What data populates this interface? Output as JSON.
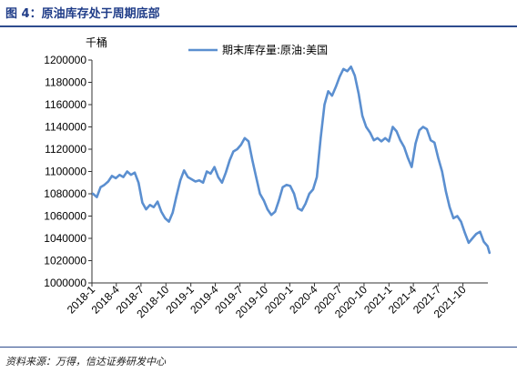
{
  "figure": {
    "title": "图 4：原油库存处于周期底部",
    "source": "资料来源：万得，信达证券研发中心"
  },
  "chart_data": {
    "type": "line",
    "yunit": "千桶",
    "ylim": [
      1000000,
      1200000
    ],
    "yticks": [
      1000000,
      1020000,
      1040000,
      1060000,
      1080000,
      1100000,
      1120000,
      1140000,
      1160000,
      1180000,
      1200000
    ],
    "xticks": [
      "2018-1",
      "2018-4",
      "2018-7",
      "2018-10",
      "2019-1",
      "2019-4",
      "2019-7",
      "2019-10",
      "2020-1",
      "2020-4",
      "2020-7",
      "2020-10",
      "2021-1",
      "2021-4",
      "2021-7",
      "2021-10"
    ],
    "xlim": [
      "2018-01",
      "2022-01"
    ],
    "grid": false,
    "legend_position": "top",
    "series": [
      {
        "name": "期末库存量:原油:美国",
        "color": "#5b8fd0",
        "points": [
          [
            "2018-01-05",
            1080000
          ],
          [
            "2018-01-19",
            1077000
          ],
          [
            "2018-02-02",
            1086000
          ],
          [
            "2018-02-16",
            1088000
          ],
          [
            "2018-03-02",
            1091000
          ],
          [
            "2018-03-16",
            1096000
          ],
          [
            "2018-03-30",
            1094000
          ],
          [
            "2018-04-13",
            1097000
          ],
          [
            "2018-04-27",
            1095000
          ],
          [
            "2018-05-11",
            1100000
          ],
          [
            "2018-05-25",
            1097000
          ],
          [
            "2018-06-08",
            1099000
          ],
          [
            "2018-06-22",
            1090000
          ],
          [
            "2018-07-06",
            1072000
          ],
          [
            "2018-07-20",
            1066000
          ],
          [
            "2018-08-03",
            1070000
          ],
          [
            "2018-08-17",
            1068000
          ],
          [
            "2018-08-31",
            1073000
          ],
          [
            "2018-09-14",
            1064000
          ],
          [
            "2018-09-28",
            1058000
          ],
          [
            "2018-10-12",
            1055000
          ],
          [
            "2018-10-26",
            1063000
          ],
          [
            "2018-11-09",
            1078000
          ],
          [
            "2018-11-23",
            1092000
          ],
          [
            "2018-12-07",
            1101000
          ],
          [
            "2018-12-21",
            1095000
          ],
          [
            "2019-01-04",
            1093000
          ],
          [
            "2019-01-18",
            1091000
          ],
          [
            "2019-02-01",
            1092000
          ],
          [
            "2019-02-15",
            1090000
          ],
          [
            "2019-03-01",
            1100000
          ],
          [
            "2019-03-15",
            1098000
          ],
          [
            "2019-03-29",
            1104000
          ],
          [
            "2019-04-12",
            1095000
          ],
          [
            "2019-04-26",
            1090000
          ],
          [
            "2019-05-10",
            1099000
          ],
          [
            "2019-05-24",
            1110000
          ],
          [
            "2019-06-07",
            1118000
          ],
          [
            "2019-06-21",
            1120000
          ],
          [
            "2019-07-05",
            1124000
          ],
          [
            "2019-07-19",
            1130000
          ],
          [
            "2019-08-02",
            1127000
          ],
          [
            "2019-08-16",
            1110000
          ],
          [
            "2019-08-30",
            1095000
          ],
          [
            "2019-09-13",
            1080000
          ],
          [
            "2019-09-27",
            1074000
          ],
          [
            "2019-10-11",
            1066000
          ],
          [
            "2019-10-25",
            1061000
          ],
          [
            "2019-11-08",
            1064000
          ],
          [
            "2019-11-22",
            1074000
          ],
          [
            "2019-12-06",
            1086000
          ],
          [
            "2019-12-20",
            1088000
          ],
          [
            "2020-01-03",
            1087000
          ],
          [
            "2020-01-17",
            1080000
          ],
          [
            "2020-01-31",
            1067000
          ],
          [
            "2020-02-14",
            1065000
          ],
          [
            "2020-02-28",
            1071000
          ],
          [
            "2020-03-13",
            1080000
          ],
          [
            "2020-03-27",
            1084000
          ],
          [
            "2020-04-10",
            1095000
          ],
          [
            "2020-04-24",
            1130000
          ],
          [
            "2020-05-08",
            1160000
          ],
          [
            "2020-05-22",
            1172000
          ],
          [
            "2020-06-05",
            1168000
          ],
          [
            "2020-06-19",
            1176000
          ],
          [
            "2020-07-03",
            1185000
          ],
          [
            "2020-07-17",
            1192000
          ],
          [
            "2020-07-31",
            1190000
          ],
          [
            "2020-08-14",
            1194000
          ],
          [
            "2020-08-28",
            1186000
          ],
          [
            "2020-09-11",
            1170000
          ],
          [
            "2020-09-25",
            1150000
          ],
          [
            "2020-10-09",
            1140000
          ],
          [
            "2020-10-23",
            1135000
          ],
          [
            "2020-11-06",
            1128000
          ],
          [
            "2020-11-20",
            1130000
          ],
          [
            "2020-12-04",
            1127000
          ],
          [
            "2020-12-18",
            1130000
          ],
          [
            "2021-01-01",
            1127000
          ],
          [
            "2021-01-15",
            1140000
          ],
          [
            "2021-01-29",
            1136000
          ],
          [
            "2021-02-12",
            1128000
          ],
          [
            "2021-02-26",
            1122000
          ],
          [
            "2021-03-12",
            1112000
          ],
          [
            "2021-03-26",
            1104000
          ],
          [
            "2021-04-09",
            1125000
          ],
          [
            "2021-04-23",
            1137000
          ],
          [
            "2021-05-07",
            1140000
          ],
          [
            "2021-05-21",
            1138000
          ],
          [
            "2021-06-04",
            1128000
          ],
          [
            "2021-06-18",
            1126000
          ],
          [
            "2021-07-02",
            1112000
          ],
          [
            "2021-07-16",
            1100000
          ],
          [
            "2021-07-30",
            1082000
          ],
          [
            "2021-08-13",
            1068000
          ],
          [
            "2021-08-27",
            1058000
          ],
          [
            "2021-09-10",
            1060000
          ],
          [
            "2021-09-24",
            1055000
          ],
          [
            "2021-10-08",
            1045000
          ],
          [
            "2021-10-22",
            1036000
          ],
          [
            "2021-11-05",
            1040000
          ],
          [
            "2021-11-19",
            1044000
          ],
          [
            "2021-12-03",
            1046000
          ],
          [
            "2021-12-17",
            1037000
          ],
          [
            "2021-12-31",
            1033000
          ],
          [
            "2022-01-07",
            1027000
          ]
        ]
      }
    ]
  }
}
